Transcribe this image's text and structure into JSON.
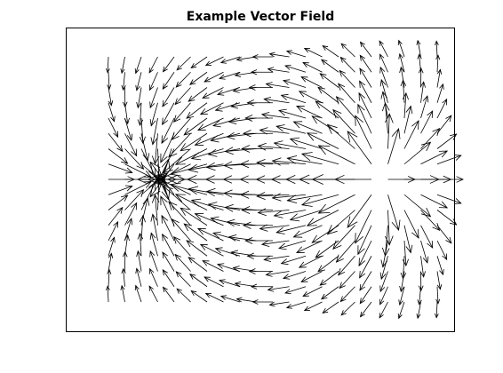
{
  "chart_data": {
    "type": "quiver",
    "title": "Example Vector Field",
    "xlabel": "",
    "ylabel": "",
    "axis_ticks_shown": false,
    "grid": false,
    "legend": "none",
    "field": {
      "kind": "dipole",
      "x_range": [
        -2,
        2
      ],
      "y_range": [
        -1.6,
        1.6
      ],
      "grid_columns": 21,
      "grid_rows": 17,
      "sink": [
        -1.3,
        0
      ],
      "source": [
        1.3,
        0
      ]
    },
    "colors": {
      "arrows": "#000000",
      "axes_box": "#000000",
      "background": "#ffffff"
    }
  }
}
